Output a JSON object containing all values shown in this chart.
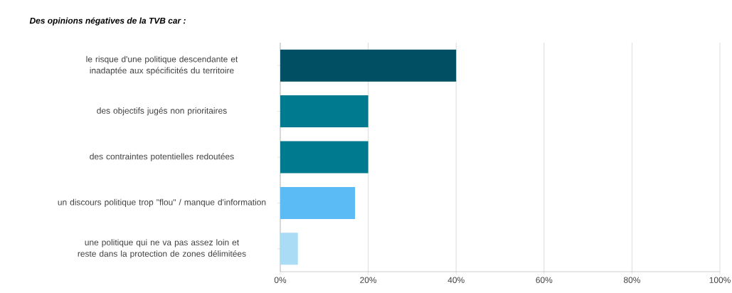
{
  "chart_data": {
    "type": "bar",
    "orientation": "horizontal",
    "title": "Des opinions négatives de la TVB car :",
    "categories": [
      "le risque d'une politique descendante et inadaptée aux spécificités du territoire",
      "des objectifs jugés non prioritaires",
      "des contraintes potentielles redoutées",
      "un discours politique trop \"flou\" / manque d'information",
      "une politique qui ne va pas assez loin et reste dans la protection de zones délimitées"
    ],
    "values": [
      40,
      20,
      20,
      17,
      4
    ],
    "colors": [
      "#004f63",
      "#007a8e",
      "#007a8e",
      "#5bbcf5",
      "#aadcf5"
    ],
    "xlim": [
      0,
      100
    ],
    "xticks": [
      {
        "value": 0,
        "label": "0%"
      },
      {
        "value": 20,
        "label": "20%"
      },
      {
        "value": 40,
        "label": "40%"
      },
      {
        "value": 60,
        "label": "60%"
      },
      {
        "value": 80,
        "label": "80%"
      },
      {
        "value": 100,
        "label": "100%"
      }
    ],
    "grid": "x"
  }
}
